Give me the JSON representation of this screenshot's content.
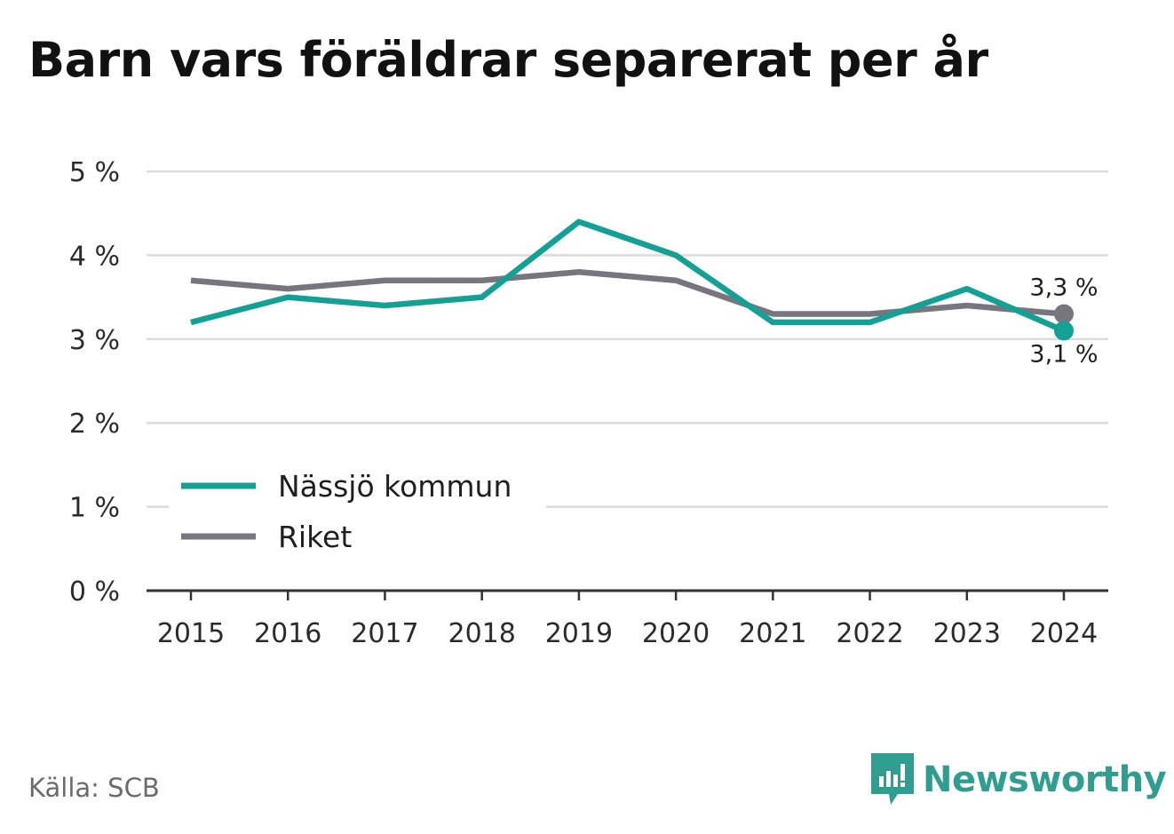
{
  "title": "Barn vars föräldrar separerat per år",
  "source": {
    "label": "Källa:",
    "value": "SCB"
  },
  "brand": {
    "name": "Newsworthy",
    "icon": "newsworthy-logo-icon",
    "color": "#2f9e90"
  },
  "chart_data": {
    "type": "line",
    "title": "Barn vars föräldrar separerat per år",
    "xlabel": "",
    "ylabel": "",
    "x": [
      2015,
      2016,
      2017,
      2018,
      2019,
      2020,
      2021,
      2022,
      2023,
      2024
    ],
    "ylim": [
      0,
      5
    ],
    "yticks": [
      0,
      1,
      2,
      3,
      4,
      5
    ],
    "ytick_labels": [
      "0 %",
      "1 %",
      "2 %",
      "3 %",
      "4 %",
      "5 %"
    ],
    "xtick_labels": [
      "2015",
      "2016",
      "2017",
      "2018",
      "2019",
      "2020",
      "2021",
      "2022",
      "2023",
      "2024"
    ],
    "grid": true,
    "legend_position": "bottom-left",
    "series": [
      {
        "name": "Nässjö kommun",
        "color": "#13a196",
        "values": [
          3.2,
          3.5,
          3.4,
          3.5,
          4.4,
          4.0,
          3.2,
          3.2,
          3.6,
          3.1
        ],
        "end_label": "3,1 %"
      },
      {
        "name": "Riket",
        "color": "#77757d",
        "values": [
          3.7,
          3.6,
          3.7,
          3.7,
          3.8,
          3.7,
          3.3,
          3.3,
          3.4,
          3.3
        ],
        "end_label": "3,3 %"
      }
    ]
  }
}
